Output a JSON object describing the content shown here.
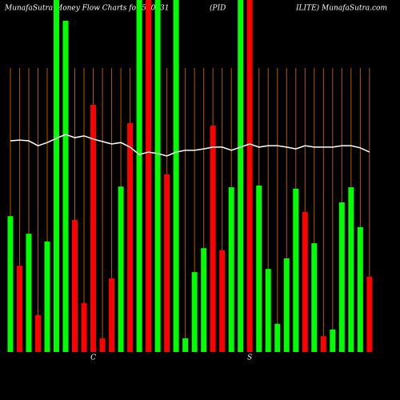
{
  "chart_data": {
    "type": "bar",
    "title_parts": [
      "MunafaSutra  Money Flow  Charts for 500331",
      "(PID",
      "ILITE) MunafaSutra.com"
    ],
    "categories": [
      null,
      null,
      null,
      null,
      null,
      null,
      null,
      null,
      null,
      null,
      null,
      null,
      null,
      null,
      null,
      null,
      null,
      null,
      null,
      null,
      null,
      null,
      null,
      null,
      null,
      null,
      null,
      null,
      null,
      null,
      null,
      null,
      null,
      null,
      null,
      null,
      null,
      null,
      null,
      null
    ],
    "values": [
      38.6,
      24.5,
      33.6,
      10.5,
      31.4,
      100,
      94.1,
      37.5,
      13.9,
      70.2,
      3.9,
      20.9,
      47,
      65,
      100,
      100,
      100,
      50.5,
      100,
      3.9,
      22.7,
      29.5,
      64.3,
      28.9,
      46.8,
      100,
      100,
      47.3,
      23.6,
      8,
      26.6,
      46.4,
      39.8,
      30.9,
      4.5,
      6.4,
      42.5,
      46.8,
      35.5,
      21.4
    ],
    "colors": [
      "#00ff00",
      "#ff0000",
      "#00ff00",
      "#ff0000",
      "#00ff00",
      "#00ff00",
      "#00ff00",
      "#ff0000",
      "#ff0000",
      "#ff0000",
      "#ff0000",
      "#ff0000",
      "#00ff00",
      "#ff0000",
      "#00ff00",
      "#ff0000",
      "#00ff00",
      "#ff0000",
      "#00ff00",
      "#00ff00",
      "#00ff00",
      "#00ff00",
      "#ff0000",
      "#ff0000",
      "#00ff00",
      "#00ff00",
      "#ff0000",
      "#00ff00",
      "#00ff00",
      "#00ff00",
      "#00ff00",
      "#00ff00",
      "#ff0000",
      "#00ff00",
      "#ff0000",
      "#00ff00",
      "#00ff00",
      "#00ff00",
      "#00ff00",
      "#ff0000"
    ],
    "line": {
      "color": "#ffffff",
      "values": [
        60,
        60.2,
        60,
        58.6,
        59.5,
        60.7,
        61.8,
        60.9,
        61.4,
        60.5,
        59.8,
        59.1,
        59.5,
        58.2,
        56.1,
        56.8,
        56.4,
        55.7,
        56.8,
        57.3,
        57.3,
        57.7,
        58.2,
        58.2,
        57.3,
        58.2,
        59.1,
        58.2,
        58.6,
        58.6,
        58.2,
        57.7,
        58.6,
        58.2,
        58.2,
        58.2,
        58.6,
        58.6,
        58,
        56.8
      ]
    },
    "annotations": [
      {
        "text": "C",
        "index": 9
      },
      {
        "text": "S",
        "index": 26
      }
    ],
    "ylim": [
      0,
      100
    ]
  }
}
